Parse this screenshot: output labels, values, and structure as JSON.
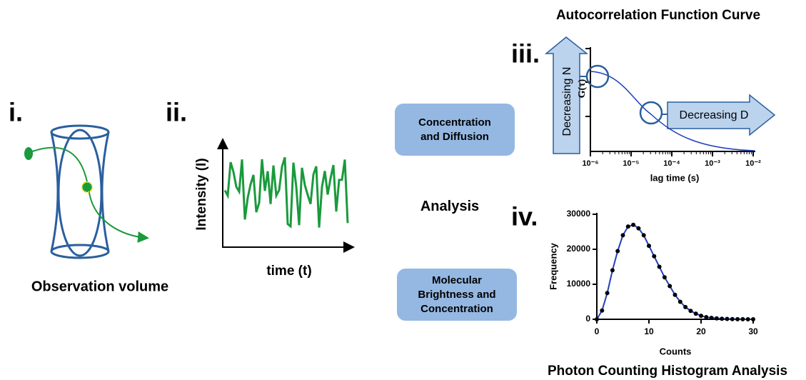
{
  "panels": {
    "i": {
      "label": "i.",
      "caption": "Observation volume"
    },
    "ii": {
      "label": "ii.",
      "y_label": "Intensity (I)",
      "x_label": "time (t)"
    },
    "iii": {
      "label": "iii.",
      "title": "Autocorrelation Function Curve",
      "y_label": "G(τ)",
      "x_label": "lag time (s)",
      "xlim": [
        1e-06,
        0.01
      ],
      "log_x": true,
      "xticks": [
        {
          "value": 1e-06,
          "label": "10⁻⁶"
        },
        {
          "value": 1e-05,
          "label": "10⁻⁵"
        },
        {
          "value": 0.0001,
          "label": "10⁻⁴"
        },
        {
          "value": 0.001,
          "label": "10⁻³"
        },
        {
          "value": 0.01,
          "label": "10⁻²"
        }
      ],
      "arrows": [
        "Decreasing N",
        "Decreasing D"
      ]
    },
    "iv": {
      "label": "iv.",
      "title": "Photon Counting Histogram Analysis",
      "x_label": "Counts",
      "y_label": "Frequency",
      "xlim": [
        0,
        30
      ],
      "ylim": [
        0,
        30000
      ],
      "xticks": [
        0,
        10,
        20,
        30
      ],
      "yticks": [
        0,
        10000,
        20000,
        30000
      ],
      "color": "#1f3fbf",
      "x": [
        0,
        1,
        2,
        3,
        4,
        5,
        6,
        7,
        8,
        9,
        10,
        11,
        12,
        13,
        14,
        15,
        16,
        17,
        18,
        19,
        20,
        21,
        22,
        23,
        24,
        25,
        26,
        27,
        28,
        29,
        30
      ],
      "values": [
        0,
        2500,
        7500,
        14000,
        19500,
        24000,
        26500,
        27000,
        26000,
        24000,
        21000,
        18000,
        15000,
        12000,
        9500,
        7000,
        5000,
        3500,
        2400,
        1600,
        1000,
        600,
        400,
        250,
        150,
        100,
        50,
        30,
        20,
        10,
        5
      ]
    }
  },
  "boxes": [
    "Concentration and Diffusion",
    "Analysis",
    "Molecular Brightness and Concentration"
  ]
}
